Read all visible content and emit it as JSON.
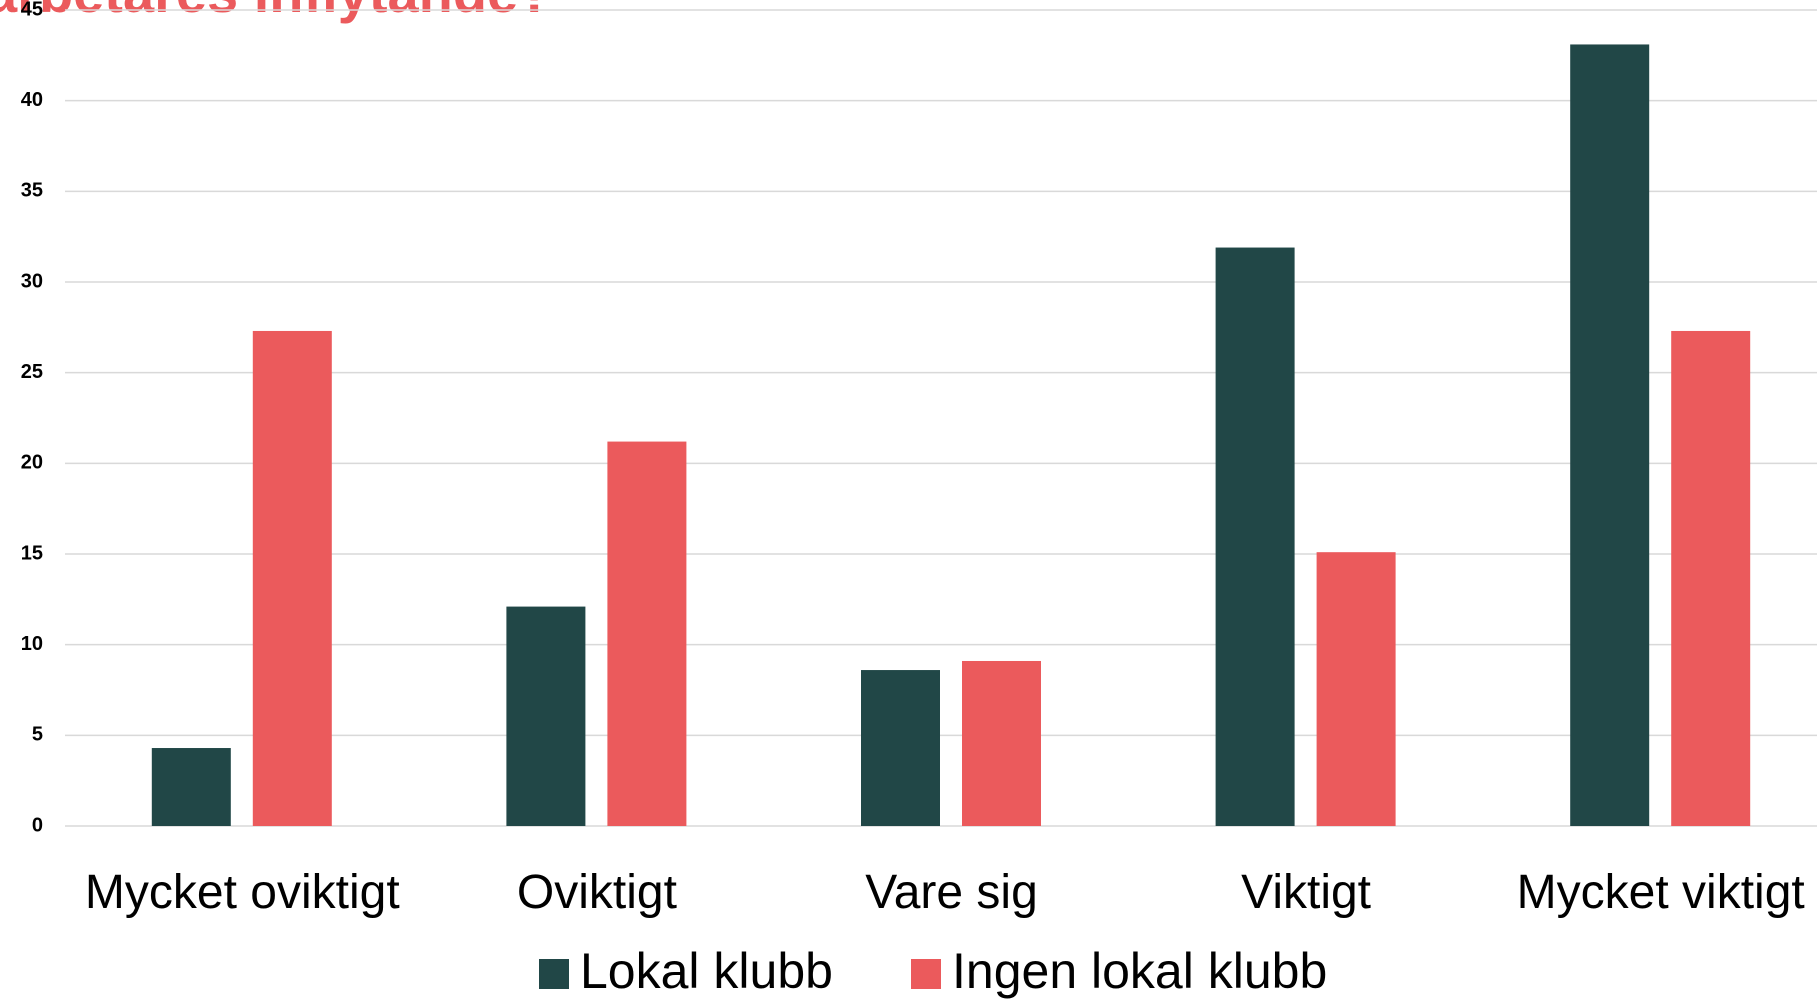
{
  "chart_data": {
    "type": "bar",
    "title": "arbetares inflytande?",
    "categories": [
      "Mycket oviktigt",
      "Oviktigt",
      "Vare sig",
      "Viktigt",
      "Mycket viktigt"
    ],
    "series": [
      {
        "name": "Lokal klubb",
        "color": "#214747",
        "values": [
          4.3,
          12.1,
          8.6,
          31.9,
          43.1
        ]
      },
      {
        "name": "Ingen lokal klubb",
        "color": "#eb5a5c",
        "values": [
          27.3,
          21.2,
          9.1,
          15.1,
          27.3
        ]
      }
    ],
    "ylim": [
      0,
      45
    ],
    "yticks": [
      0,
      5,
      10,
      15,
      20,
      25,
      30,
      35,
      40,
      45
    ],
    "grid": true,
    "legend": "bottom"
  }
}
